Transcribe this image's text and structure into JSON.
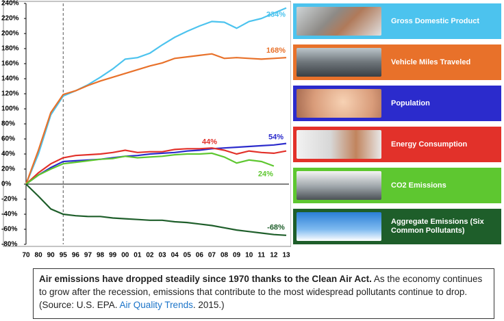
{
  "chart_data": {
    "type": "line",
    "categories": [
      "70",
      "80",
      "90",
      "95",
      "96",
      "97",
      "98",
      "99",
      "00",
      "01",
      "02",
      "03",
      "04",
      "05",
      "06",
      "07",
      "08",
      "09",
      "10",
      "11",
      "12",
      "13"
    ],
    "ylim": [
      -80,
      240
    ],
    "yticks": [
      {
        "value": 240,
        "label": "240%"
      },
      {
        "value": 220,
        "label": "220%"
      },
      {
        "value": 200,
        "label": "200%"
      },
      {
        "value": 180,
        "label": "180%"
      },
      {
        "value": 160,
        "label": "160%"
      },
      {
        "value": 140,
        "label": "140%"
      },
      {
        "value": 120,
        "label": "120%"
      },
      {
        "value": 100,
        "label": "100%"
      },
      {
        "value": 80,
        "label": "80%"
      },
      {
        "value": 60,
        "label": "60%"
      },
      {
        "value": 40,
        "label": "40%"
      },
      {
        "value": 20,
        "label": "20%"
      },
      {
        "value": 0,
        "label": "0%"
      },
      {
        "value": -20,
        "label": "-20%"
      },
      {
        "value": -40,
        "label": "-40%"
      },
      {
        "value": -60,
        "label": "-60%"
      },
      {
        "value": -80,
        "label": "-80%"
      }
    ],
    "dashed_line_at": "95",
    "series": [
      {
        "name": "Gross Domestic Product",
        "color": "#4cc3ee",
        "values": [
          0,
          40,
          92,
          117,
          124,
          132,
          142,
          153,
          166,
          168,
          174,
          185,
          195,
          203,
          210,
          216,
          215,
          207,
          216,
          220,
          227,
          234
        ],
        "value_labels": [
          null,
          null,
          null,
          null,
          null,
          null,
          null,
          null,
          null,
          null,
          null,
          null,
          null,
          null,
          null,
          null,
          null,
          null,
          null,
          null,
          null,
          "234%"
        ]
      },
      {
        "name": "Vehicle Miles Traveled",
        "color": "#e8712a",
        "values": [
          0,
          45,
          95,
          119,
          124,
          131,
          137,
          142,
          147,
          152,
          157,
          161,
          167,
          169,
          171,
          173,
          167,
          168,
          167,
          166,
          167,
          168
        ],
        "value_labels": [
          null,
          null,
          null,
          null,
          null,
          null,
          null,
          null,
          null,
          null,
          null,
          null,
          null,
          null,
          null,
          null,
          null,
          null,
          null,
          null,
          null,
          "168%"
        ]
      },
      {
        "name": "Population",
        "color": "#2b2bcc",
        "values": [
          0,
          12,
          22,
          30,
          31,
          32,
          33,
          35,
          37,
          38,
          40,
          41,
          42,
          44,
          45,
          47,
          48,
          49,
          50,
          51,
          52,
          54
        ],
        "value_labels": [
          null,
          null,
          null,
          null,
          null,
          null,
          null,
          null,
          null,
          null,
          null,
          null,
          null,
          null,
          null,
          null,
          null,
          null,
          null,
          null,
          null,
          "54%"
        ]
      },
      {
        "name": "Energy Consumption",
        "color": "#e2312a",
        "values": [
          0,
          15,
          27,
          35,
          38,
          39,
          40,
          42,
          45,
          42,
          43,
          43,
          46,
          47,
          47,
          48,
          45,
          40,
          44,
          42,
          41,
          44
        ],
        "value_labels": [
          null,
          null,
          null,
          null,
          null,
          null,
          null,
          null,
          null,
          null,
          null,
          null,
          null,
          null,
          null,
          null,
          null,
          null,
          null,
          null,
          null,
          "44%"
        ]
      },
      {
        "name": "CO2 Emissions",
        "color": "#5ec730",
        "values": [
          0,
          12,
          20,
          27,
          29,
          31,
          33,
          34,
          37,
          35,
          36,
          37,
          39,
          40,
          40,
          41,
          36,
          28,
          32,
          30,
          24,
          null
        ],
        "value_labels": [
          null,
          null,
          null,
          null,
          null,
          null,
          null,
          null,
          null,
          null,
          null,
          null,
          null,
          null,
          null,
          null,
          null,
          null,
          null,
          null,
          "24%",
          null
        ]
      },
      {
        "name": "Aggregate Emissions (Six Common Pollutants)",
        "color": "#1e5e2a",
        "values": [
          0,
          -16,
          -33,
          -40,
          -42,
          -43,
          -43,
          -45,
          -46,
          -47,
          -48,
          -48,
          -50,
          -51,
          -53,
          -55,
          -58,
          -61,
          -63,
          -65,
          -67,
          -68
        ],
        "value_labels": [
          null,
          null,
          null,
          null,
          null,
          null,
          null,
          null,
          null,
          null,
          null,
          null,
          null,
          null,
          null,
          null,
          null,
          null,
          null,
          null,
          null,
          "-68%"
        ]
      }
    ]
  },
  "caption": {
    "bold": "Air emissions have dropped steadily since 1970 thanks to the Clean Air Act.",
    "text": " As the economy continues to grow after the recession, emissions that contribute to the most widespread pollutants continue to drop. (Source: U.S. EPA. ",
    "link": "Air Quality Trends",
    "end": ". 2015.)"
  }
}
